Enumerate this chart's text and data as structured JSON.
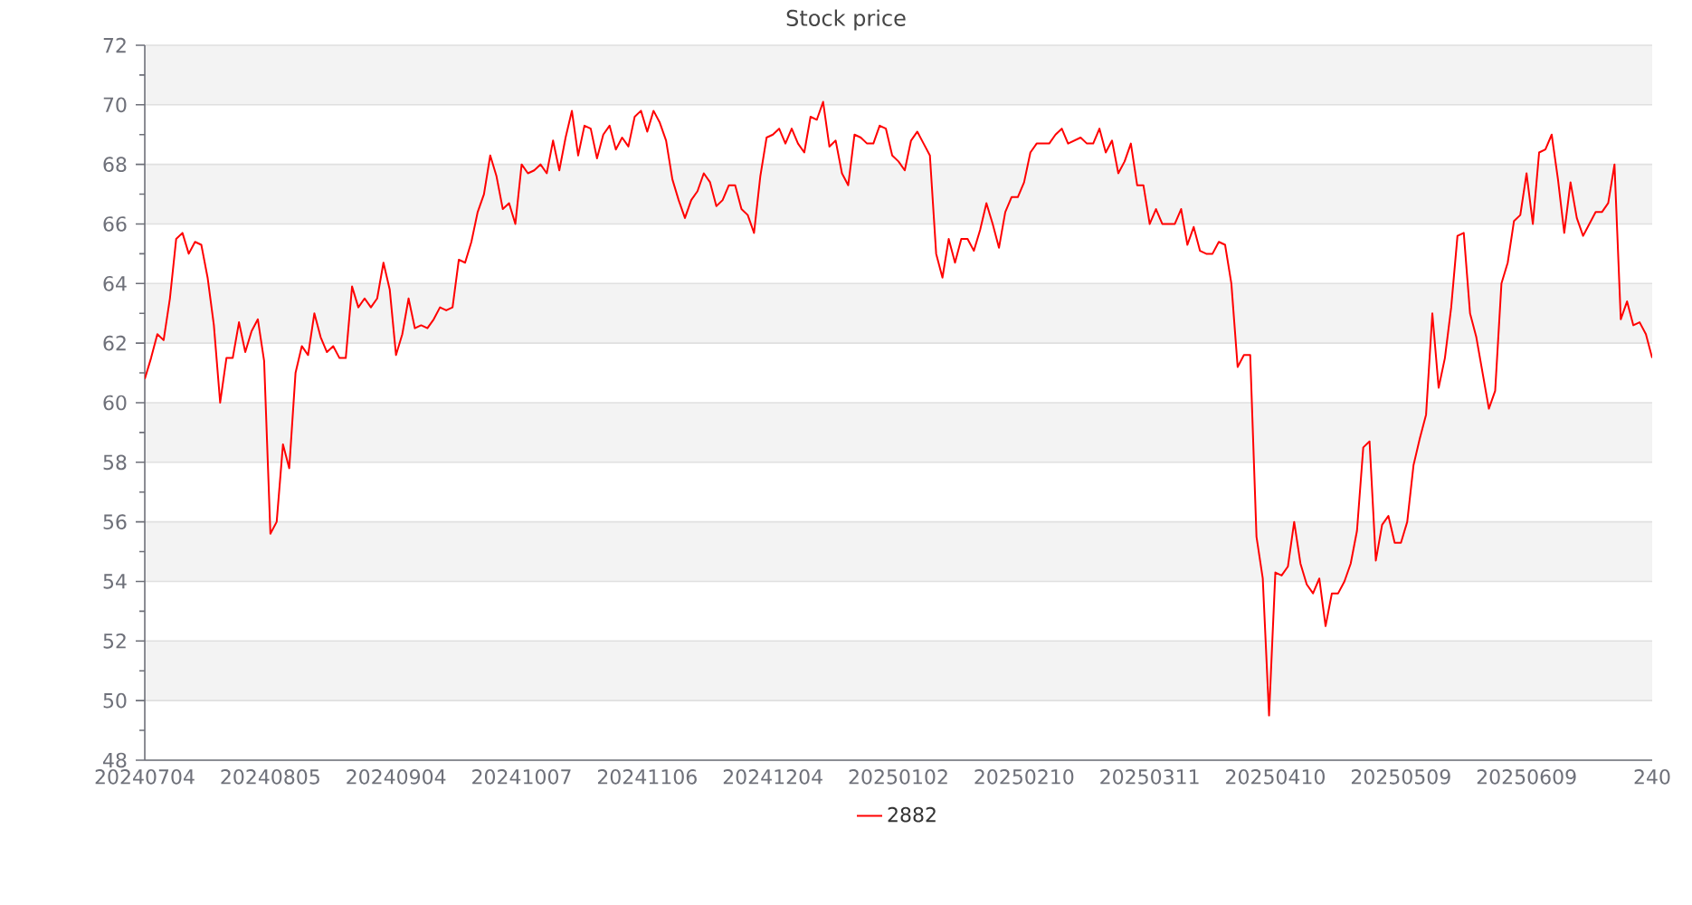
{
  "chart_data": {
    "type": "line",
    "title": "Stock price",
    "categories": [
      "20240704",
      null,
      null,
      null,
      null,
      null,
      null,
      null,
      null,
      null,
      null,
      null,
      null,
      null,
      null,
      null,
      null,
      null,
      null,
      null,
      "20240805",
      null,
      null,
      null,
      null,
      null,
      null,
      null,
      null,
      null,
      null,
      null,
      null,
      null,
      null,
      null,
      null,
      null,
      null,
      null,
      "20240904",
      null,
      null,
      null,
      null,
      null,
      null,
      null,
      null,
      null,
      null,
      null,
      null,
      null,
      null,
      null,
      null,
      null,
      null,
      null,
      "20241007",
      null,
      null,
      null,
      null,
      null,
      null,
      null,
      null,
      null,
      null,
      null,
      null,
      null,
      null,
      null,
      null,
      null,
      null,
      null,
      "20241106",
      null,
      null,
      null,
      null,
      null,
      null,
      null,
      null,
      null,
      null,
      null,
      null,
      null,
      null,
      null,
      null,
      null,
      null,
      null,
      "20241204",
      null,
      null,
      null,
      null,
      null,
      null,
      null,
      null,
      null,
      null,
      null,
      null,
      null,
      null,
      null,
      null,
      null,
      null,
      null,
      "20250102",
      null,
      null,
      null,
      null,
      null,
      null,
      null,
      null,
      null,
      null,
      null,
      null,
      null,
      null,
      null,
      null,
      null,
      null,
      null,
      "20250210",
      null,
      null,
      null,
      null,
      null,
      null,
      null,
      null,
      null,
      null,
      null,
      null,
      null,
      null,
      null,
      null,
      null,
      null,
      null,
      "20250311",
      null,
      null,
      null,
      null,
      null,
      null,
      null,
      null,
      null,
      null,
      null,
      null,
      null,
      null,
      null,
      null,
      null,
      null,
      null,
      "20250410",
      null,
      null,
      null,
      null,
      null,
      null,
      null,
      null,
      null,
      null,
      null,
      null,
      null,
      null,
      null,
      null,
      null,
      null,
      null,
      "20250509",
      null,
      null,
      null,
      null,
      null,
      null,
      null,
      null,
      null,
      null,
      null,
      null,
      null,
      null,
      null,
      null,
      null,
      null,
      null,
      "20250609",
      null,
      null,
      null,
      null,
      null,
      null,
      null,
      null,
      null,
      null,
      null,
      null,
      null,
      null,
      null,
      null,
      null,
      null,
      null,
      "240"
    ],
    "series": [
      {
        "name": "2882",
        "color": "#ff0000",
        "values": [
          60.8,
          61.5,
          62.3,
          62.1,
          63.5,
          65.5,
          65.7,
          65.0,
          65.4,
          65.3,
          64.2,
          62.6,
          60.0,
          61.5,
          61.5,
          62.7,
          61.7,
          62.4,
          62.8,
          61.4,
          55.6,
          56.0,
          58.6,
          57.8,
          61.0,
          61.9,
          61.6,
          63.0,
          62.2,
          61.7,
          61.9,
          61.5,
          61.5,
          63.9,
          63.2,
          63.5,
          63.2,
          63.5,
          64.7,
          63.8,
          61.6,
          62.3,
          63.5,
          62.5,
          62.6,
          62.5,
          62.8,
          63.2,
          63.1,
          63.2,
          64.8,
          64.7,
          65.4,
          66.4,
          67.0,
          68.3,
          67.6,
          66.5,
          66.7,
          66.0,
          68.0,
          67.7,
          67.8,
          68.0,
          67.7,
          68.8,
          67.8,
          68.9,
          69.8,
          68.3,
          69.3,
          69.2,
          68.2,
          69.0,
          69.3,
          68.5,
          68.9,
          68.6,
          69.6,
          69.8,
          69.1,
          69.8,
          69.4,
          68.8,
          67.5,
          66.8,
          66.2,
          66.8,
          67.1,
          67.7,
          67.4,
          66.6,
          66.8,
          67.3,
          67.3,
          66.5,
          66.3,
          65.7,
          67.6,
          68.9,
          69.0,
          69.2,
          68.7,
          69.2,
          68.7,
          68.4,
          69.6,
          69.5,
          70.1,
          68.6,
          68.8,
          67.7,
          67.3,
          69.0,
          68.9,
          68.7,
          68.7,
          69.3,
          69.2,
          68.3,
          68.1,
          67.8,
          68.8,
          69.1,
          68.7,
          68.3,
          65.0,
          64.2,
          65.5,
          64.7,
          65.5,
          65.5,
          65.1,
          65.8,
          66.7,
          66.0,
          65.2,
          66.4,
          66.9,
          66.9,
          67.4,
          68.4,
          68.7,
          68.7,
          68.7,
          69.0,
          69.2,
          68.7,
          68.8,
          68.9,
          68.7,
          68.7,
          69.2,
          68.4,
          68.8,
          67.7,
          68.1,
          68.7,
          67.3,
          67.3,
          66.0,
          66.5,
          66.0,
          66.0,
          66.0,
          66.5,
          65.3,
          65.9,
          65.1,
          65.0,
          65.0,
          65.4,
          65.3,
          64.0,
          61.2,
          61.6,
          61.6,
          55.5,
          54.1,
          49.5,
          54.3,
          54.2,
          54.5,
          56.0,
          54.6,
          53.9,
          53.6,
          54.1,
          52.5,
          53.6,
          53.6,
          54.0,
          54.6,
          55.7,
          58.5,
          58.7,
          54.7,
          55.9,
          56.2,
          55.3,
          55.3,
          56.0,
          57.9,
          58.8,
          59.6,
          63.0,
          60.5,
          61.5,
          63.2,
          65.6,
          65.7,
          63.0,
          62.2,
          61.0,
          59.8,
          60.4,
          64.0,
          64.7,
          66.1,
          66.3,
          67.7,
          66.0,
          68.4,
          68.5,
          69.0,
          67.5,
          65.7,
          67.4,
          66.2,
          65.6,
          66.0,
          66.4,
          66.4,
          66.7,
          68.0,
          62.8,
          63.4,
          62.6,
          62.7,
          62.3,
          61.5
        ]
      }
    ],
    "ylim": [
      48,
      72
    ],
    "yticks": [
      48,
      {
        "value": 49,
        "label": null
      },
      50,
      {
        "value": 51,
        "label": null
      },
      52,
      {
        "value": 53,
        "label": null
      },
      54,
      {
        "value": 55,
        "label": null
      },
      56,
      {
        "value": 57,
        "label": null
      },
      58,
      {
        "value": 59,
        "label": null
      },
      60,
      {
        "value": 61,
        "label": null
      },
      62,
      {
        "value": 63,
        "label": null
      },
      64,
      {
        "value": 65,
        "label": null
      },
      66,
      {
        "value": 67,
        "label": null
      },
      68,
      {
        "value": 69,
        "label": null
      },
      70,
      {
        "value": 71,
        "label": null
      },
      72
    ],
    "grid": "y",
    "legend": "bottom"
  }
}
